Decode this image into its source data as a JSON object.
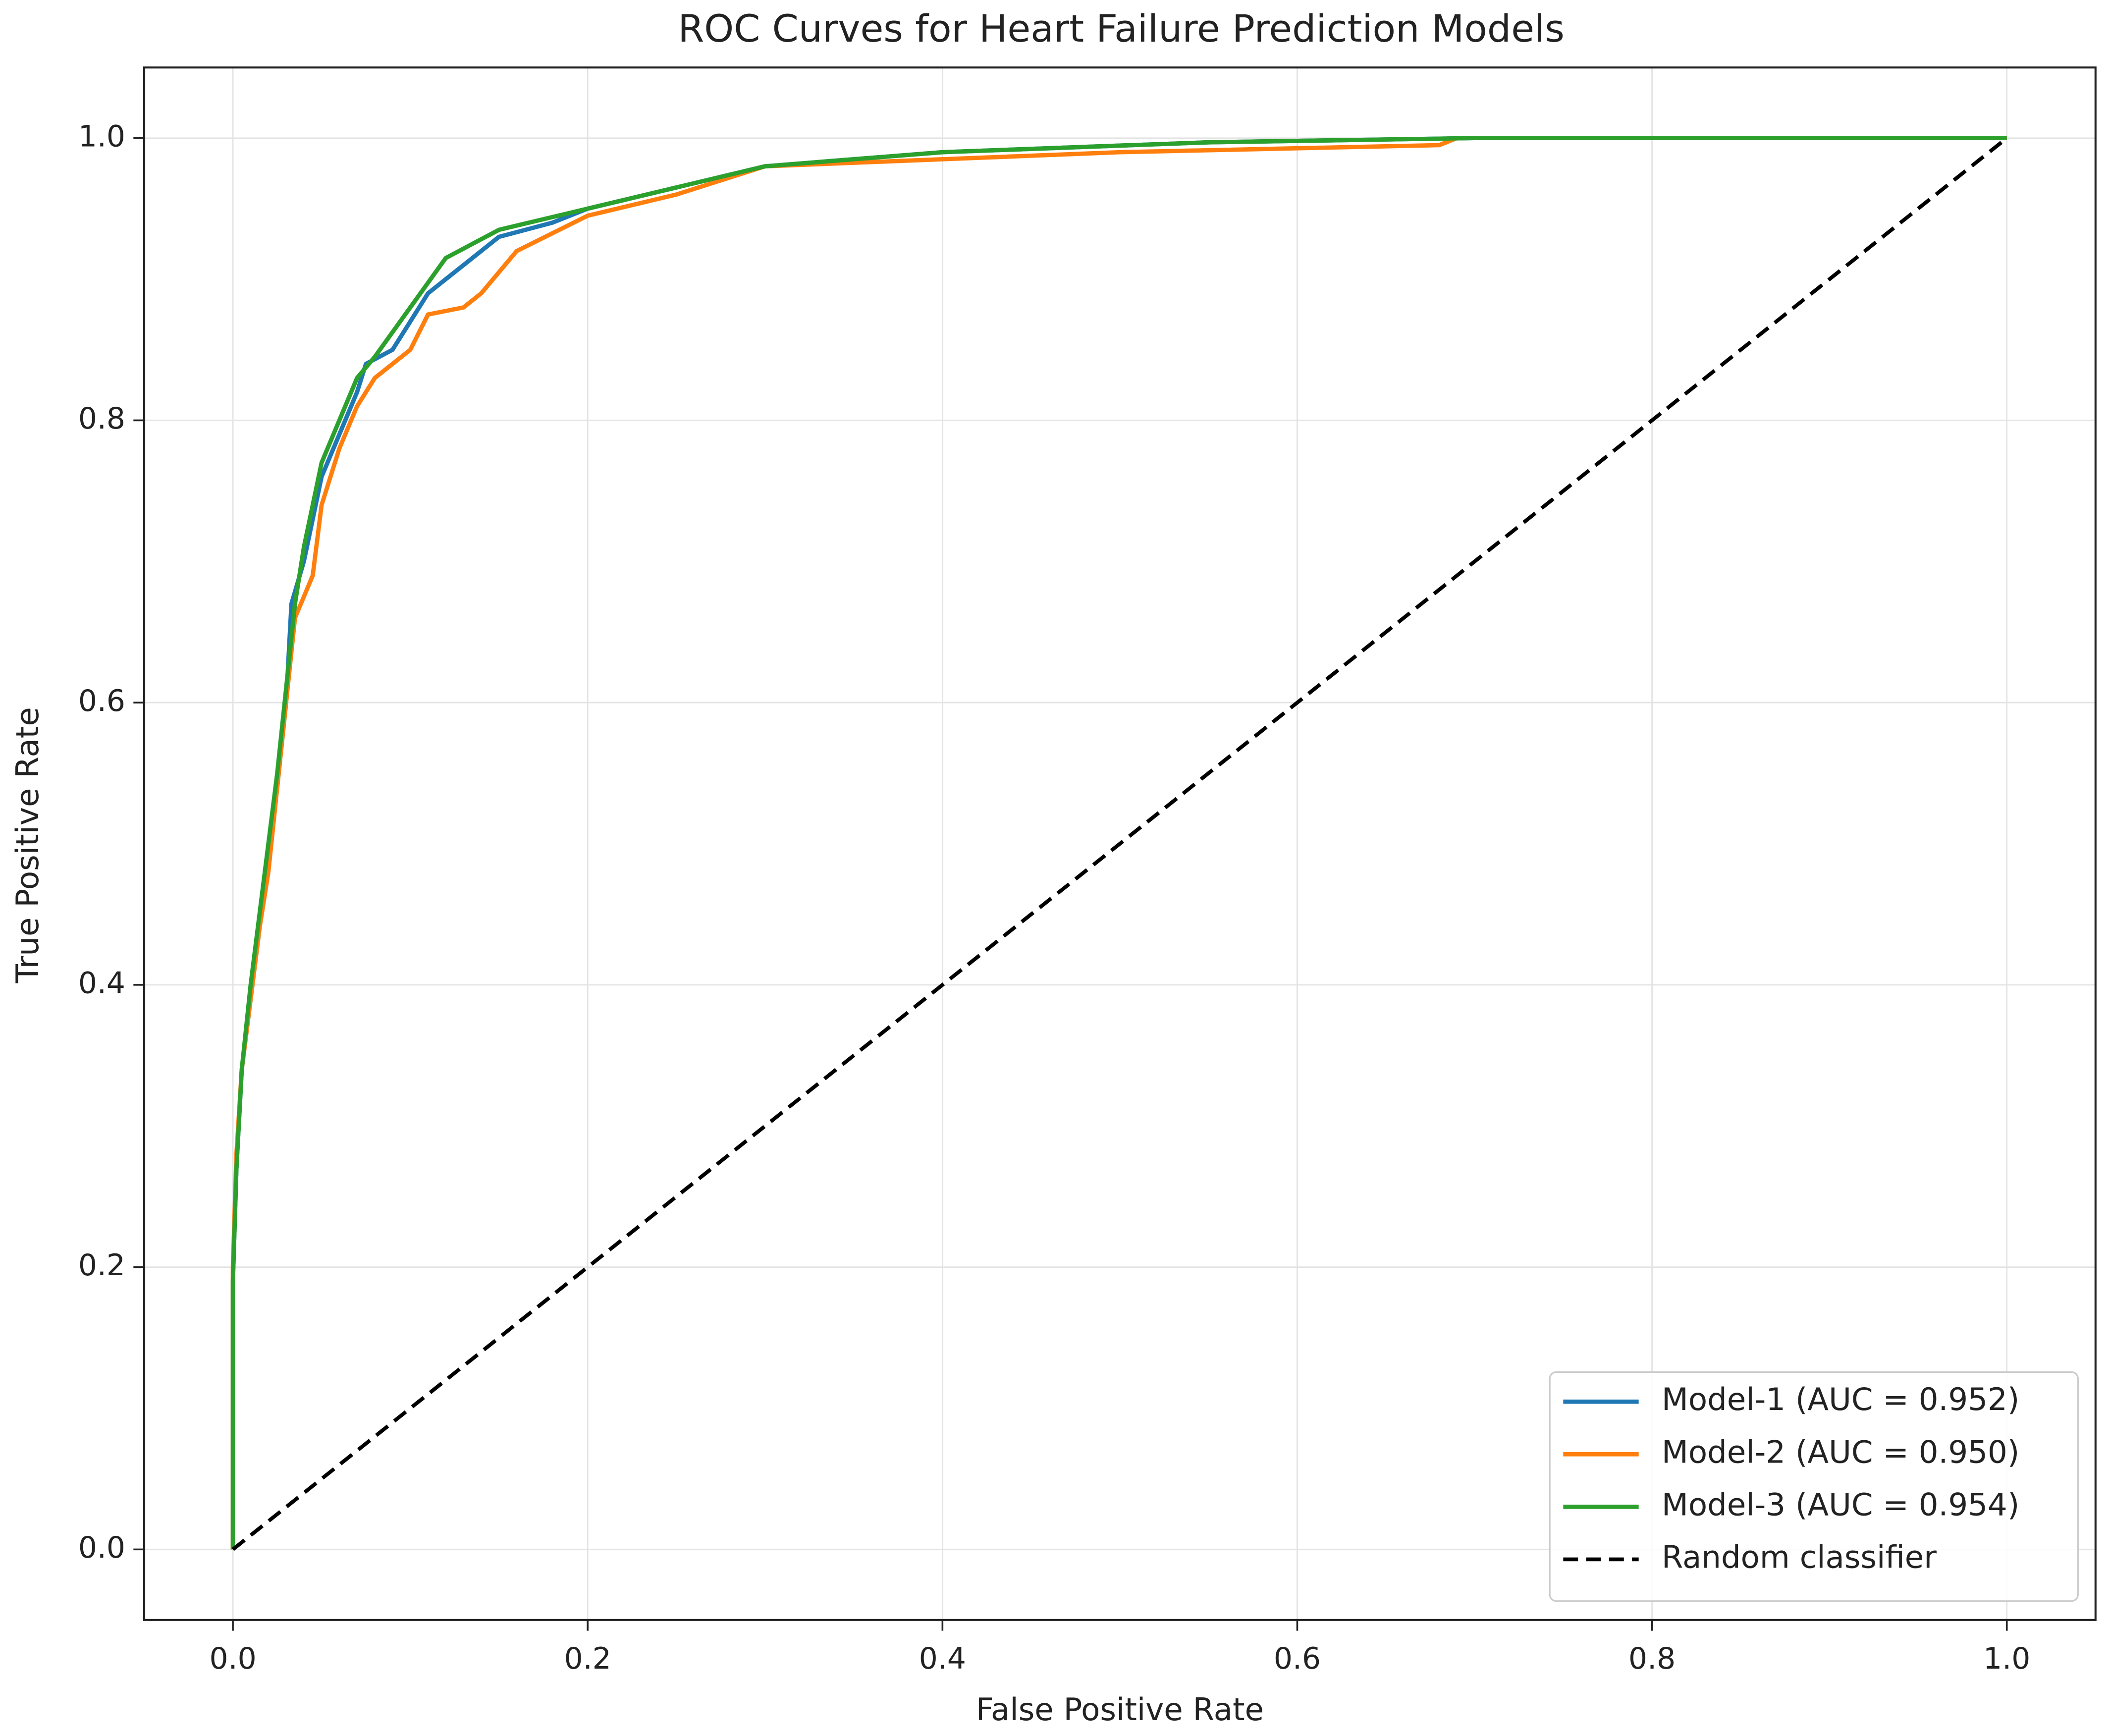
{
  "chart_data": {
    "type": "line",
    "title": "ROC Curves for Heart Failure Prediction Models",
    "x_label": "False Positive Rate",
    "y_label": "True Positive Rate",
    "xlim": [
      -0.05,
      1.05
    ],
    "ylim": [
      -0.05,
      1.05
    ],
    "xticks": [
      {
        "value": 0,
        "label": "0.0"
      },
      0.2,
      0.4,
      0.6,
      0.8,
      {
        "value": 1,
        "label": "1.0"
      }
    ],
    "yticks": [
      {
        "value": 0,
        "label": "0.0"
      },
      0.2,
      0.4,
      0.6,
      0.8,
      {
        "value": 1,
        "label": "1.0"
      }
    ],
    "grid": true,
    "legend_position": "lower right",
    "series": [
      {
        "name": "Model-1 (AUC = 0.952)",
        "color": "#1f77b4",
        "x": [
          0,
          0,
          0.002,
          0.005,
          0.01,
          0.015,
          0.02,
          0.025,
          0.03,
          0.033,
          0.04,
          0.05,
          0.06,
          0.07,
          0.075,
          0.09,
          0.1,
          0.11,
          0.13,
          0.15,
          0.18,
          0.2,
          0.25,
          0.3,
          0.4,
          0.55,
          0.7,
          1
        ],
        "values": [
          0,
          0.19,
          0.27,
          0.34,
          0.39,
          0.44,
          0.49,
          0.54,
          0.6,
          0.67,
          0.7,
          0.76,
          0.79,
          0.82,
          0.84,
          0.85,
          0.87,
          0.89,
          0.91,
          0.93,
          0.94,
          0.95,
          0.965,
          0.98,
          0.99,
          0.997,
          1,
          1
        ]
      },
      {
        "name": "Model-2 (AUC = 0.950)",
        "color": "#ff7f0e",
        "x": [
          0,
          0,
          0.002,
          0.005,
          0.01,
          0.015,
          0.02,
          0.025,
          0.03,
          0.035,
          0.045,
          0.05,
          0.06,
          0.07,
          0.08,
          0.1,
          0.11,
          0.13,
          0.14,
          0.16,
          0.2,
          0.25,
          0.3,
          0.5,
          0.68,
          0.69,
          1
        ],
        "values": [
          0,
          0.2,
          0.28,
          0.34,
          0.39,
          0.44,
          0.48,
          0.54,
          0.6,
          0.66,
          0.69,
          0.74,
          0.78,
          0.81,
          0.83,
          0.85,
          0.875,
          0.88,
          0.89,
          0.92,
          0.945,
          0.96,
          0.98,
          0.99,
          0.995,
          1,
          1
        ]
      },
      {
        "name": "Model-3 (AUC = 0.954)",
        "color": "#2ca02c",
        "x": [
          0,
          0,
          0.002,
          0.005,
          0.01,
          0.015,
          0.02,
          0.025,
          0.03,
          0.035,
          0.04,
          0.05,
          0.06,
          0.07,
          0.08,
          0.1,
          0.12,
          0.15,
          0.2,
          0.25,
          0.3,
          0.4,
          0.55,
          0.7,
          1
        ],
        "values": [
          0,
          0.19,
          0.27,
          0.34,
          0.4,
          0.45,
          0.5,
          0.55,
          0.61,
          0.67,
          0.71,
          0.77,
          0.8,
          0.83,
          0.845,
          0.88,
          0.915,
          0.935,
          0.95,
          0.965,
          0.98,
          0.99,
          0.997,
          1,
          1
        ]
      },
      {
        "name": "Random classifier",
        "color": "#000000",
        "dashed": true,
        "x": [
          0,
          1
        ],
        "values": [
          0,
          1
        ]
      }
    ]
  }
}
